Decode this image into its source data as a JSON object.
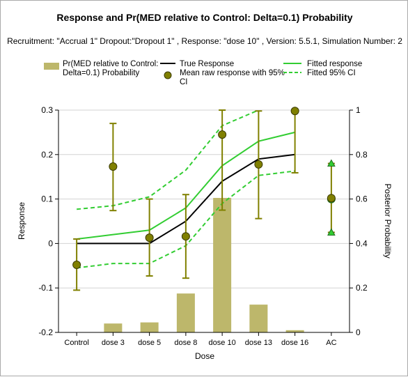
{
  "chart_data": {
    "type": "bar",
    "title": "Response and Pr(MED relative to Control: Delta=0.1) Probability",
    "subtitle": "Recruitment: \"Accrual 1\" Dropout:\"Dropout 1\" , Response: \"dose 10\" , Version: 5.5.1, Simulation Number: 2",
    "xlabel": "Dose",
    "ylabel": "Response",
    "y2label": "Posterior Probability",
    "categories": [
      "Control",
      "dose 3",
      "dose 5",
      "dose 8",
      "dose 10",
      "dose 13",
      "dose 16",
      "AC"
    ],
    "ylim": [
      -0.2,
      0.3
    ],
    "y_ticks": [
      "0.3",
      "0.2",
      "0.1",
      "0",
      "-0.1",
      "-0.2"
    ],
    "y_tick_values": [
      0.3,
      0.2,
      0.1,
      0,
      -0.1,
      -0.2
    ],
    "y2lim": [
      0,
      1
    ],
    "y2_ticks": [
      "1",
      "0.8",
      "0.6",
      "0.4",
      "0.2",
      "0"
    ],
    "y2_tick_values": [
      1,
      0.8,
      0.6,
      0.4,
      0.2,
      0
    ],
    "grid": true,
    "legend": [
      {
        "label_lines": [
          "Pr(MED relative to Control:",
          "Delta=0.1) Probability"
        ],
        "symbol": "bar"
      },
      {
        "label_lines": [
          "True Response"
        ],
        "symbol": "line-black"
      },
      {
        "label_lines": [
          "Mean raw response with 95%",
          "CI"
        ],
        "symbol": "dot"
      },
      {
        "label_lines": [
          "Fitted response"
        ],
        "symbol": "line-green"
      },
      {
        "label_lines": [
          "Fitted 95% CI"
        ],
        "symbol": "dash-green"
      }
    ],
    "series": [
      {
        "name": "Pr(MED relative to Control: Delta=0.1) Probability",
        "kind": "bar",
        "axis": "right",
        "color": "#bdb76b",
        "values": [
          0,
          0.04,
          0.045,
          0.175,
          0.605,
          0.125,
          0.01,
          null
        ]
      },
      {
        "name": "True Response",
        "kind": "line",
        "color": "#000000",
        "values": [
          0,
          0,
          0,
          0.05,
          0.14,
          0.19,
          0.2,
          null
        ]
      },
      {
        "name": "Fitted response",
        "kind": "line",
        "color": "#32cd32",
        "values": [
          0.01,
          0.02,
          0.03,
          0.08,
          0.175,
          0.23,
          0.25,
          null
        ]
      },
      {
        "name": "Fitted 95% CI",
        "kind": "line-dashed",
        "color": "#32cd32",
        "upper": [
          0.077,
          0.085,
          0.105,
          0.165,
          0.265,
          0.3,
          null,
          null
        ],
        "lower": [
          -0.055,
          -0.045,
          -0.045,
          -0.005,
          0.09,
          0.153,
          0.163,
          null
        ]
      },
      {
        "name": "Mean raw response with 95% CI",
        "kind": "errorbar",
        "color": "#808000",
        "mean": [
          -0.048,
          0.173,
          0.013,
          0.016,
          0.245,
          0.178,
          0.298,
          0.102
        ],
        "lower": [
          -0.105,
          0.074,
          -0.073,
          -0.078,
          0.075,
          0.056,
          0.159,
          0.025
        ],
        "upper": [
          0.01,
          0.27,
          0.1,
          0.11,
          0.3,
          0.298,
          0.3,
          0.18
        ]
      }
    ],
    "active_control": {
      "mean": 0.1,
      "ci_low": 0.025,
      "ci_high": 0.18,
      "color": "#32cd32"
    }
  }
}
